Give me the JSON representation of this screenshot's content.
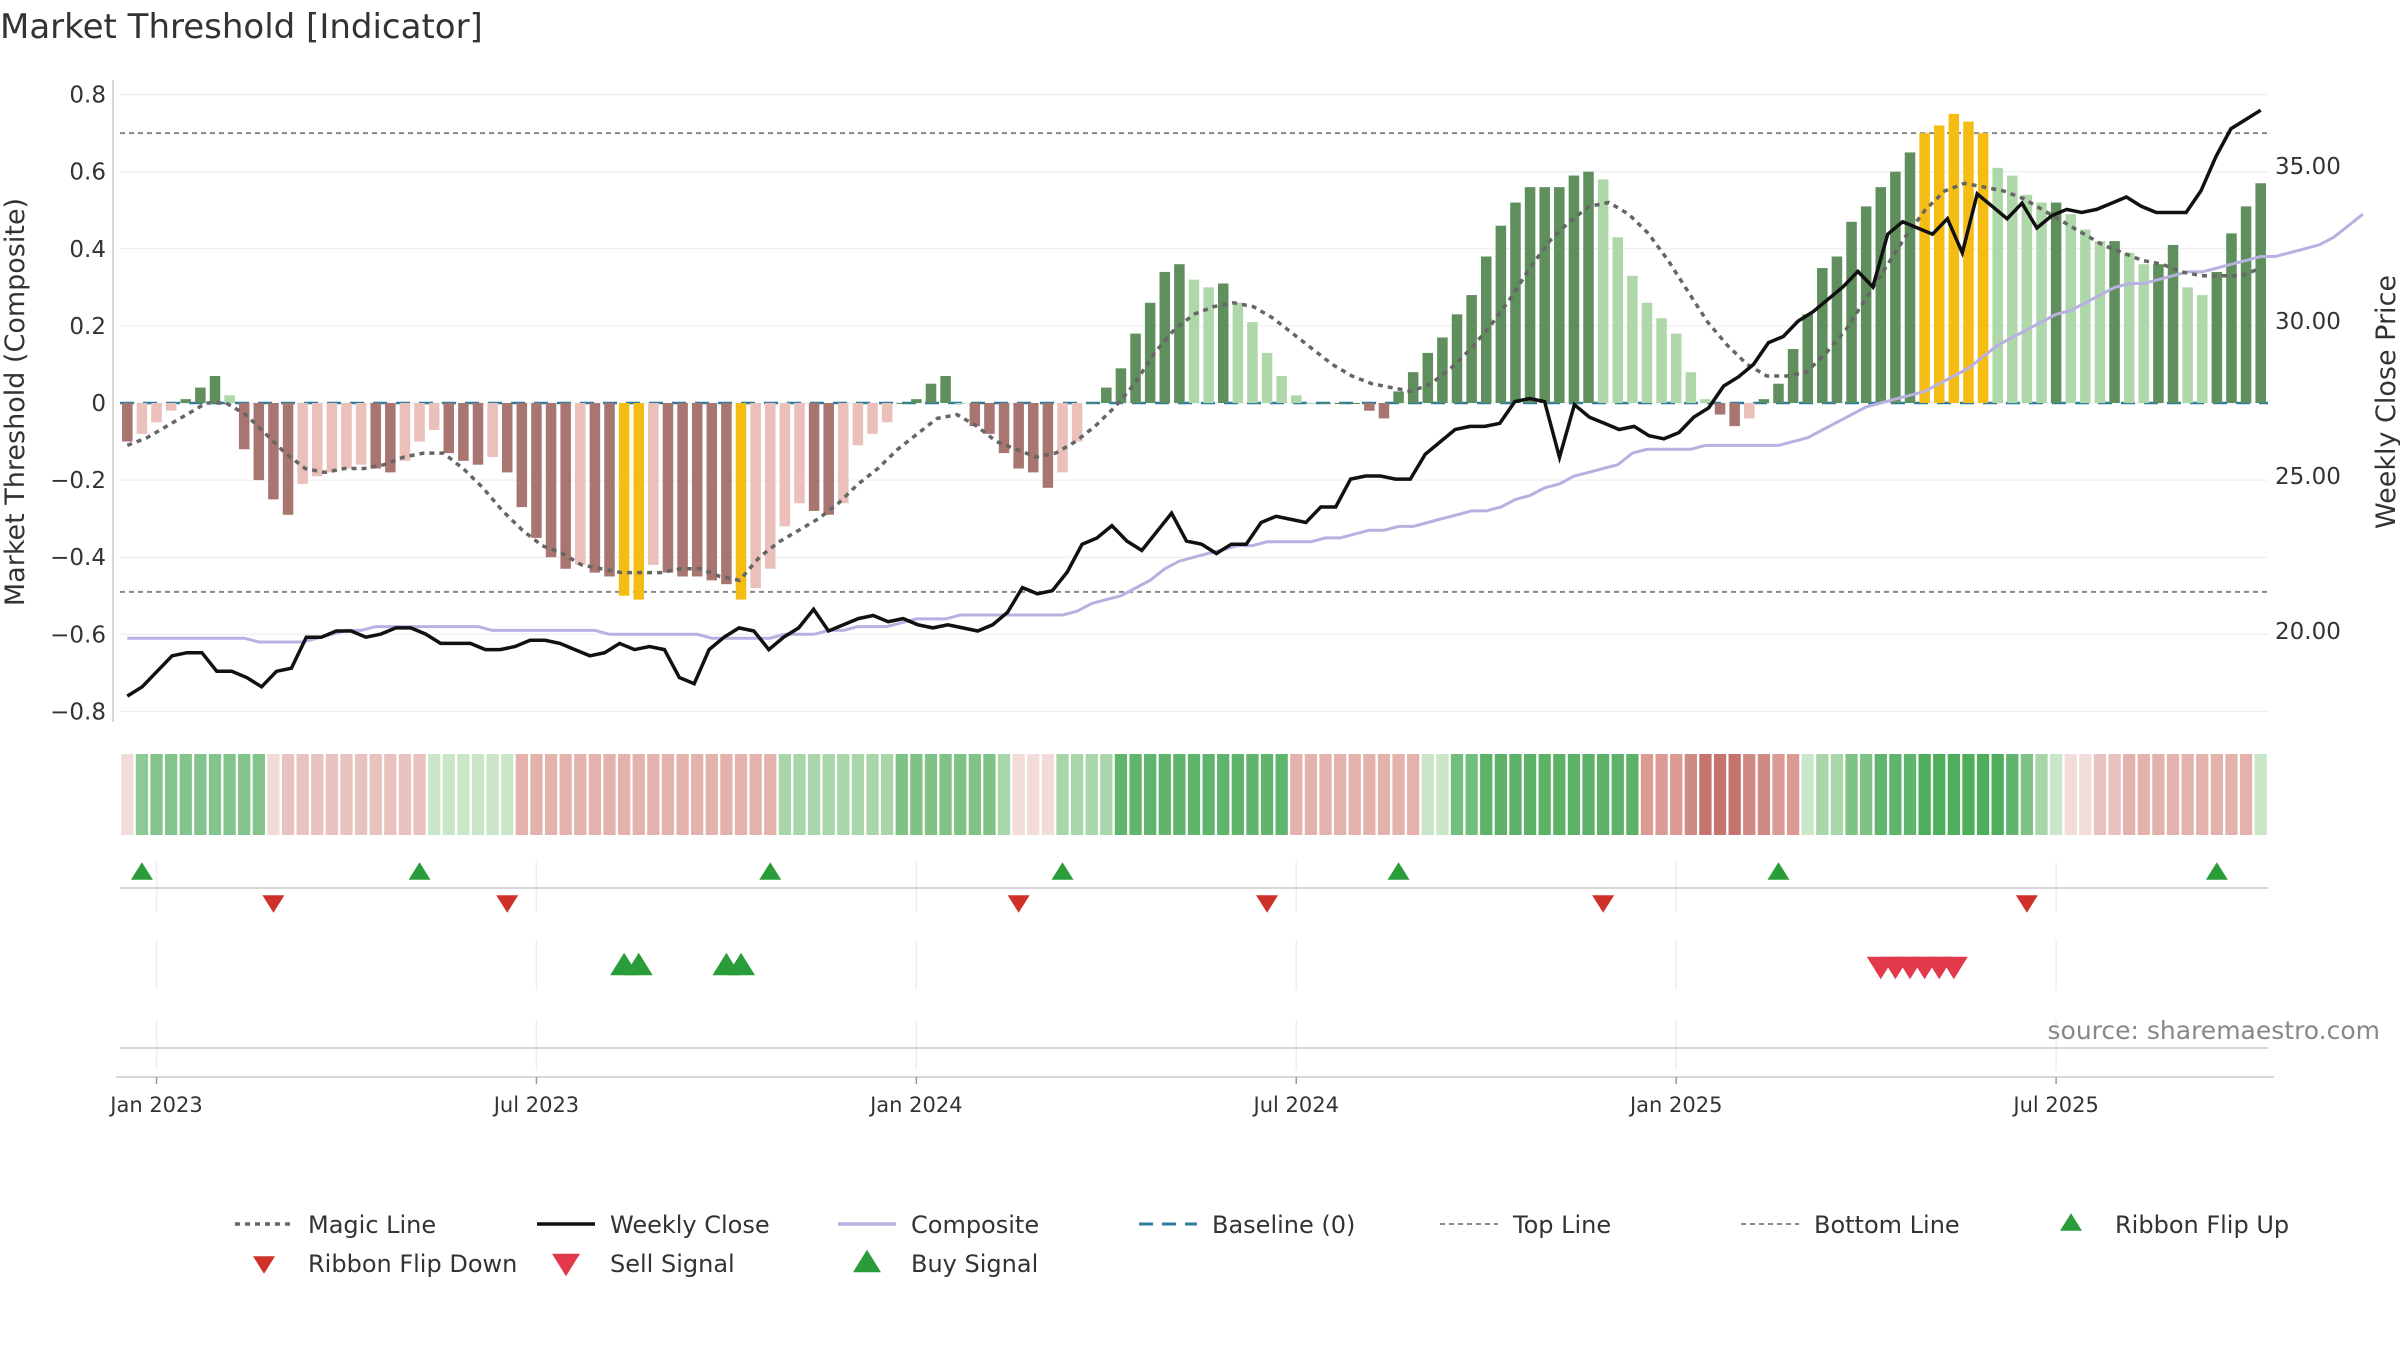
{
  "chart_data": {
    "type": "bar",
    "title": "Market Threshold [Indicator]",
    "ylabel_left": "Market Threshold (Composite)",
    "ylabel_right": "Weekly Close Price",
    "source": "source: sharemaestro.com",
    "ylim_left": [
      -0.8,
      0.8
    ],
    "ylim_right": [
      16.5,
      37.5
    ],
    "left_ticks": [
      {
        "v": 0.8,
        "label": "0.8"
      },
      {
        "v": 0.6,
        "label": "0.6"
      },
      {
        "v": 0.4,
        "label": "0.4"
      },
      {
        "v": 0.2,
        "label": "0.2"
      },
      {
        "v": 0,
        "label": "0"
      },
      {
        "v": -0.2,
        "label": "−0.2"
      },
      {
        "v": -0.4,
        "label": "−0.4"
      },
      {
        "v": -0.6,
        "label": "−0.6"
      },
      {
        "v": -0.8,
        "label": "−0.8"
      }
    ],
    "right_ticks": [
      {
        "v": 35,
        "label": "35.00"
      },
      {
        "v": 30,
        "label": "30.00"
      },
      {
        "v": 25,
        "label": "25.00"
      },
      {
        "v": 20,
        "label": "20.00"
      }
    ],
    "x_ticks": [
      {
        "week": 2,
        "label": "Jan 2023"
      },
      {
        "week": 28,
        "label": "Jul 2023"
      },
      {
        "week": 54,
        "label": "Jan 2024"
      },
      {
        "week": 80,
        "label": "Jul 2024"
      },
      {
        "week": 106,
        "label": "Jan 2025"
      },
      {
        "week": 132,
        "label": "Jul 2025"
      }
    ],
    "top_line": 0.7,
    "bottom_line": -0.49,
    "grid": true,
    "legend_position": "bottom",
    "bar_colors": {
      "positive_strong": "#5f8f5c",
      "positive_weak": "#afd8aa",
      "negative_strong": "#a97570",
      "negative_weak": "#ebbfba",
      "extreme": "#f5bd14"
    },
    "composite_values": [
      -0.1,
      -0.08,
      -0.05,
      -0.02,
      0.01,
      0.04,
      0.07,
      0.02,
      -0.12,
      -0.2,
      -0.25,
      -0.29,
      -0.21,
      -0.19,
      -0.18,
      -0.17,
      -0.16,
      -0.17,
      -0.18,
      -0.15,
      -0.1,
      -0.07,
      -0.13,
      -0.15,
      -0.16,
      -0.14,
      -0.18,
      -0.27,
      -0.35,
      -0.4,
      -0.43,
      -0.42,
      -0.44,
      -0.45,
      -0.5,
      -0.51,
      -0.42,
      -0.44,
      -0.45,
      -0.45,
      -0.46,
      -0.47,
      -0.51,
      -0.48,
      -0.43,
      -0.32,
      -0.26,
      -0.28,
      -0.29,
      -0.26,
      -0.11,
      -0.08,
      -0.05,
      0.0,
      0.01,
      0.05,
      0.07,
      0.0,
      -0.06,
      -0.08,
      -0.13,
      -0.17,
      -0.18,
      -0.22,
      -0.18,
      -0.1,
      0.0,
      0.04,
      0.09,
      0.18,
      0.26,
      0.34,
      0.36,
      0.32,
      0.3,
      0.31,
      0.26,
      0.21,
      0.13,
      0.07,
      0.02,
      0.0,
      0.0,
      0.0,
      0.0,
      -0.02,
      -0.04,
      0.03,
      0.08,
      0.13,
      0.17,
      0.23,
      0.28,
      0.38,
      0.46,
      0.52,
      0.56,
      0.56,
      0.56,
      0.59,
      0.6,
      0.58,
      0.43,
      0.33,
      0.26,
      0.22,
      0.18,
      0.08,
      0.01,
      -0.03,
      -0.06,
      -0.04,
      0.01,
      0.05,
      0.14,
      0.23,
      0.35,
      0.38,
      0.47,
      0.51,
      0.56,
      0.6,
      0.65,
      0.7,
      0.72,
      0.75,
      0.73,
      0.7,
      0.61,
      0.59,
      0.54,
      0.52,
      0.52,
      0.49,
      0.45,
      0.42,
      0.42,
      0.39,
      0.36,
      0.36,
      0.41,
      0.3,
      0.28,
      0.34,
      0.44,
      0.51,
      0.57
    ],
    "composite_line": [
      -0.61,
      -0.61,
      -0.61,
      -0.61,
      -0.61,
      -0.61,
      -0.61,
      -0.61,
      -0.61,
      -0.62,
      -0.62,
      -0.62,
      -0.62,
      -0.61,
      -0.6,
      -0.59,
      -0.59,
      -0.58,
      -0.58,
      -0.58,
      -0.58,
      -0.58,
      -0.58,
      -0.58,
      -0.58,
      -0.59,
      -0.59,
      -0.59,
      -0.59,
      -0.59,
      -0.59,
      -0.59,
      -0.59,
      -0.6,
      -0.6,
      -0.6,
      -0.6,
      -0.6,
      -0.6,
      -0.6,
      -0.61,
      -0.61,
      -0.61,
      -0.61,
      -0.61,
      -0.6,
      -0.6,
      -0.6,
      -0.59,
      -0.59,
      -0.58,
      -0.58,
      -0.58,
      -0.57,
      -0.56,
      -0.56,
      -0.56,
      -0.55,
      -0.55,
      -0.55,
      -0.55,
      -0.55,
      -0.55,
      -0.55,
      -0.55,
      -0.54,
      -0.52,
      -0.51,
      -0.5,
      -0.48,
      -0.46,
      -0.43,
      -0.41,
      -0.4,
      -0.39,
      -0.38,
      -0.37,
      -0.37,
      -0.36,
      -0.36,
      -0.36,
      -0.36,
      -0.35,
      -0.35,
      -0.34,
      -0.33,
      -0.33,
      -0.32,
      -0.32,
      -0.31,
      -0.3,
      -0.29,
      -0.28,
      -0.28,
      -0.27,
      -0.25,
      -0.24,
      -0.22,
      -0.21,
      -0.19,
      -0.18,
      -0.17,
      -0.16,
      -0.13,
      -0.12,
      -0.12,
      -0.12,
      -0.12,
      -0.11,
      -0.11,
      -0.11,
      -0.11,
      -0.11,
      -0.11,
      -0.1,
      -0.09,
      -0.07,
      -0.05,
      -0.03,
      -0.01,
      0.0,
      0.01,
      0.02,
      0.03,
      0.05,
      0.07,
      0.09,
      0.12,
      0.15,
      0.17,
      0.19,
      0.21,
      0.23,
      0.24,
      0.26,
      0.28,
      0.3,
      0.31,
      0.31,
      0.32,
      0.33,
      0.34,
      0.34,
      0.35,
      0.36,
      0.37,
      0.38,
      0.38,
      0.39,
      0.4,
      0.41,
      0.43,
      0.46,
      0.49
    ],
    "magic_line": [
      -0.11,
      -0.09,
      -0.06,
      -0.03,
      0.0,
      0.0,
      -0.03,
      -0.08,
      -0.13,
      -0.17,
      -0.18,
      -0.17,
      -0.17,
      -0.16,
      -0.14,
      -0.13,
      -0.13,
      -0.17,
      -0.22,
      -0.28,
      -0.33,
      -0.37,
      -0.39,
      -0.42,
      -0.43,
      -0.44,
      -0.44,
      -0.44,
      -0.43,
      -0.43,
      -0.45,
      -0.46,
      -0.4,
      -0.36,
      -0.33,
      -0.3,
      -0.26,
      -0.21,
      -0.17,
      -0.12,
      -0.08,
      -0.04,
      -0.03,
      -0.06,
      -0.1,
      -0.12,
      -0.14,
      -0.13,
      -0.1,
      -0.06,
      -0.01,
      0.05,
      0.13,
      0.19,
      0.23,
      0.25,
      0.26,
      0.25,
      0.22,
      0.18,
      0.14,
      0.1,
      0.07,
      0.05,
      0.04,
      0.03,
      0.05,
      0.09,
      0.14,
      0.2,
      0.27,
      0.35,
      0.42,
      0.47,
      0.51,
      0.52,
      0.49,
      0.44,
      0.37,
      0.29,
      0.21,
      0.15,
      0.1,
      0.07,
      0.07,
      0.08,
      0.13,
      0.19,
      0.27,
      0.35,
      0.43,
      0.5,
      0.55,
      0.57,
      0.56,
      0.55,
      0.53,
      0.5,
      0.47,
      0.44,
      0.41,
      0.39,
      0.37,
      0.36,
      0.34,
      0.33,
      0.33,
      0.33,
      0.35
    ],
    "weekly_close": [
      17.9,
      18.2,
      18.7,
      19.2,
      19.3,
      19.3,
      18.7,
      18.7,
      18.5,
      18.2,
      18.7,
      18.8,
      19.8,
      19.8,
      20.0,
      20.0,
      19.8,
      19.9,
      20.1,
      20.1,
      19.9,
      19.6,
      19.6,
      19.6,
      19.4,
      19.4,
      19.5,
      19.7,
      19.7,
      19.6,
      19.4,
      19.2,
      19.3,
      19.6,
      19.4,
      19.5,
      19.4,
      18.5,
      18.3,
      19.4,
      19.8,
      20.1,
      20.0,
      19.4,
      19.8,
      20.1,
      20.7,
      20.0,
      20.2,
      20.4,
      20.5,
      20.3,
      20.4,
      20.2,
      20.1,
      20.2,
      20.1,
      20.0,
      20.2,
      20.6,
      21.4,
      21.2,
      21.3,
      21.9,
      22.8,
      23.0,
      23.4,
      22.9,
      22.6,
      23.2,
      23.8,
      22.9,
      22.8,
      22.5,
      22.8,
      22.8,
      23.5,
      23.7,
      23.6,
      23.5,
      24.0,
      24.0,
      24.9,
      25.0,
      25.0,
      24.9,
      24.9,
      25.7,
      26.1,
      26.5,
      26.6,
      26.6,
      26.7,
      27.4,
      27.5,
      27.4,
      25.6,
      27.3,
      26.9,
      26.7,
      26.5,
      26.6,
      26.3,
      26.2,
      26.4,
      26.9,
      27.2,
      27.9,
      28.2,
      28.6,
      29.3,
      29.5,
      30.0,
      30.3,
      30.7,
      31.1,
      31.6,
      31.1,
      32.8,
      33.2,
      33.0,
      32.8,
      33.3,
      32.2,
      34.1,
      33.7,
      33.3,
      33.8,
      33.0,
      33.4,
      33.6,
      33.5,
      33.6,
      33.8,
      34.0,
      33.7,
      33.5,
      33.5,
      33.5,
      34.2,
      35.3,
      36.2,
      36.5,
      36.8
    ]
  },
  "ribbon": {
    "colors": [
      "#f2dcda",
      "#8cc994",
      "#82c48b",
      "#82c48b",
      "#82c48b",
      "#82c48b",
      "#82c48b",
      "#82c48b",
      "#82c48b",
      "#82c48b",
      "#f2dcda",
      "#e8c2be",
      "#e8c2be",
      "#e8c2be",
      "#e8c2be",
      "#e8c2be",
      "#e8c2be",
      "#e8c2be",
      "#e8c2be",
      "#e8c2be",
      "#e8c2be",
      "#c9e6c9",
      "#c9e6c9",
      "#c9e6c9",
      "#c9e6c9",
      "#c9e6c9",
      "#c9e6c9",
      "#e3b2ad",
      "#e3b2ad",
      "#e3b2ad",
      "#e3b2ad",
      "#e3b2ad",
      "#e3b2ad",
      "#e3b2ad",
      "#e3b2ad",
      "#e3b2ad",
      "#e3b2ad",
      "#e3b2ad",
      "#e3b2ad",
      "#e3b2ad",
      "#e3b2ad",
      "#e3b2ad",
      "#e3b2ad",
      "#e3b2ad",
      "#e3b2ad",
      "#a8d6a8",
      "#a8d6a8",
      "#a8d6a8",
      "#a8d6a8",
      "#a8d6a8",
      "#a8d6a8",
      "#a8d6a8",
      "#a8d6a8",
      "#7fc286",
      "#7fc286",
      "#7fc286",
      "#7fc286",
      "#7fc286",
      "#7fc286",
      "#7fc286",
      "#a8d6a8",
      "#f2dcda",
      "#f2dcda",
      "#f2dcda",
      "#a8d6a8",
      "#a8d6a8",
      "#a8d6a8",
      "#a8d6a8",
      "#5fb56b",
      "#5fb56b",
      "#5fb56b",
      "#5fb56b",
      "#5fb56b",
      "#5fb56b",
      "#5fb56b",
      "#5fb56b",
      "#5fb56b",
      "#5fb56b",
      "#5fb56b",
      "#5fb56b",
      "#e3b2ad",
      "#e3b2ad",
      "#e3b2ad",
      "#e3b2ad",
      "#e3b2ad",
      "#e3b2ad",
      "#e3b2ad",
      "#e3b2ad",
      "#e3b2ad",
      "#c9e6c9",
      "#c9e6c9",
      "#72be7c",
      "#72be7c",
      "#5cb368",
      "#5cb368",
      "#5cb368",
      "#5cb368",
      "#5cb368",
      "#5cb368",
      "#5cb368",
      "#5cb368",
      "#5cb368",
      "#5cb368",
      "#5cb368",
      "#da9b95",
      "#da9b95",
      "#da9b95",
      "#d08a84",
      "#c4736d",
      "#c4736d",
      "#c4736d",
      "#d08a84",
      "#d08a84",
      "#da9b95",
      "#da9b95",
      "#c9e6c9",
      "#a8d6a8",
      "#a8d6a8",
      "#7fc286",
      "#7fc286",
      "#5fb56b",
      "#5fb56b",
      "#5fb56b",
      "#4fae5c",
      "#4fae5c",
      "#4fae5c",
      "#4fae5c",
      "#4fae5c",
      "#4fae5c",
      "#5fb56b",
      "#7fc286",
      "#a8d6a8",
      "#c9e6c9",
      "#f2dcda",
      "#f2dcda",
      "#e8c2be",
      "#e8c2be",
      "#e3b2ad",
      "#e3b2ad",
      "#e3b2ad",
      "#e3b2ad",
      "#e3b2ad",
      "#e3b2ad",
      "#e3b2ad",
      "#e3b2ad",
      "#e3b2ad",
      "#c9e6c9"
    ]
  },
  "signals": {
    "ribbon_flip_up_weeks": [
      1,
      20,
      44,
      64,
      87,
      113,
      143
    ],
    "ribbon_flip_down_weeks": [
      10,
      26,
      61,
      78,
      101,
      130
    ],
    "buy_signal_weeks": [
      34,
      35,
      41,
      42
    ],
    "sell_signal_weeks": [
      120,
      121,
      122,
      123,
      124,
      125
    ]
  },
  "legend": [
    {
      "label": "Magic Line",
      "kind": "dotted",
      "color": "#666666"
    },
    {
      "label": "Weekly Close",
      "kind": "solid",
      "color": "#111111"
    },
    {
      "label": "Composite",
      "kind": "solid",
      "color": "#b8b0e0"
    },
    {
      "label": "Baseline (0)",
      "kind": "dashed",
      "color": "#2e7ba0"
    },
    {
      "label": "Top Line",
      "kind": "dotted-fine",
      "color": "#888888"
    },
    {
      "label": "Bottom Line",
      "kind": "dotted-fine",
      "color": "#888888"
    },
    {
      "label": "Ribbon Flip Up",
      "kind": "tri-up",
      "color": "#2a9d3a"
    },
    {
      "label": "Ribbon Flip Down",
      "kind": "tri-down",
      "color": "#d0302a"
    },
    {
      "label": "Sell Signal",
      "kind": "tri-down-big",
      "color": "#e23a4a"
    },
    {
      "label": "Buy Signal",
      "kind": "tri-up-big",
      "color": "#2a9d3a"
    }
  ]
}
